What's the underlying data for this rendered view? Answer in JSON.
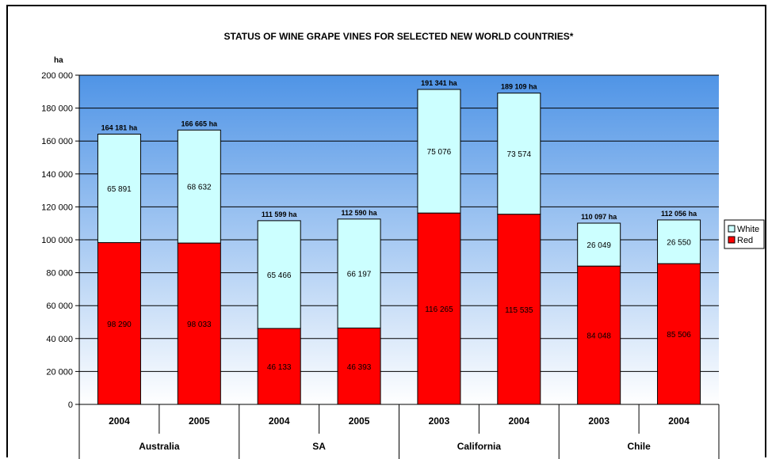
{
  "colors": {
    "white_series": "#ccffff",
    "red_series": "#ff0000",
    "plot_top": "#4f94e6",
    "plot_bottom": "#ffffff"
  },
  "chart_data": {
    "type": "bar",
    "stacked": true,
    "title": "STATUS OF WINE GRAPE VINES FOR SELECTED NEW WORLD COUNTRIES*",
    "ylabel": "ha",
    "ylim": [
      0,
      200000
    ],
    "y_ticks": [
      0,
      20000,
      40000,
      60000,
      80000,
      100000,
      120000,
      140000,
      160000,
      180000,
      200000
    ],
    "y_tick_labels": [
      "0",
      "20 000",
      "40 000",
      "60 000",
      "80 000",
      "100 000",
      "120 000",
      "140 000",
      "160 000",
      "180 000",
      "200 000"
    ],
    "grid": true,
    "legend_position": "right",
    "categories": [
      "2004",
      "2005",
      "2004",
      "2005",
      "2003",
      "2004",
      "2003",
      "2004"
    ],
    "groups": [
      {
        "label": "Australia",
        "span": 2
      },
      {
        "label": "SA",
        "span": 2
      },
      {
        "label": "California",
        "span": 2
      },
      {
        "label": "Chile",
        "span": 2
      }
    ],
    "series": [
      {
        "name": "Red",
        "values": [
          98290,
          98033,
          46133,
          46393,
          116265,
          115535,
          84048,
          85506
        ],
        "labels": [
          "98 290",
          "98 033",
          "46 133",
          "46 393",
          "116 265",
          "115 535",
          "84 048",
          "85 506"
        ]
      },
      {
        "name": "White",
        "values": [
          65891,
          68632,
          65466,
          66197,
          75076,
          73574,
          26049,
          26550
        ],
        "labels": [
          "65 891",
          "68 632",
          "65 466",
          "66 197",
          "75 076",
          "73 574",
          "26 049",
          "26 550"
        ]
      }
    ],
    "totals": [
      164181,
      166665,
      111599,
      112590,
      191341,
      189109,
      110097,
      112056
    ],
    "total_labels": [
      "164 181 ha",
      "166 665 ha",
      "111 599 ha",
      "112 590 ha",
      "191 341 ha",
      "189 109 ha",
      "110 097 ha",
      "112 056 ha"
    ]
  }
}
